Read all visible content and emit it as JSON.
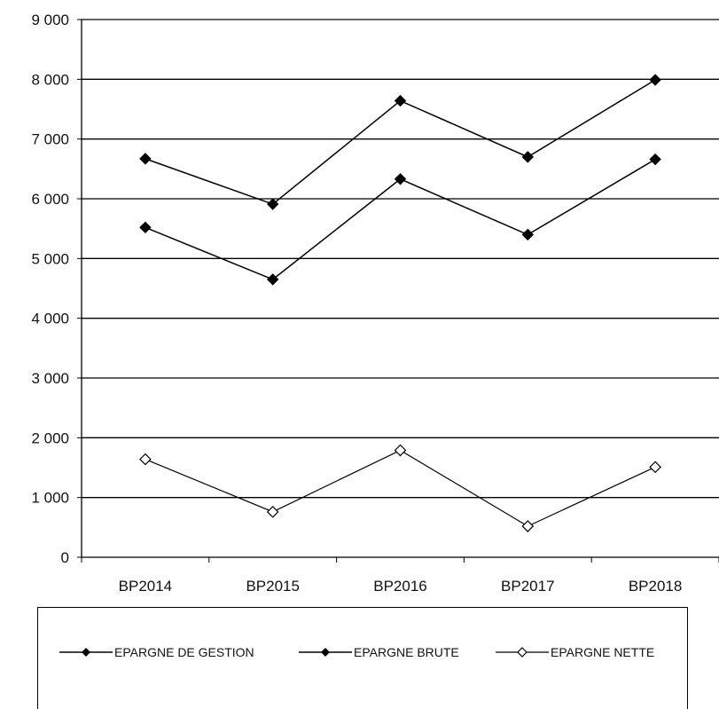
{
  "chart_data": {
    "type": "line",
    "title": "",
    "xlabel": "",
    "ylabel": "",
    "categories": [
      "BP2014",
      "BP2015",
      "BP2016",
      "BP2017",
      "BP2018"
    ],
    "ylim": [
      0,
      9000
    ],
    "yticks": [
      0,
      1000,
      2000,
      3000,
      4000,
      5000,
      6000,
      7000,
      8000,
      9000
    ],
    "ytick_labels": [
      "0",
      "1 000",
      "2 000",
      "3 000",
      "4 000",
      "5 000",
      "6 000",
      "7 000",
      "8 000",
      "9 000"
    ],
    "grid": true,
    "legend_position": "bottom",
    "series": [
      {
        "name": "EPARGNE DE GESTION",
        "values": [
          6670,
          5910,
          7640,
          6700,
          7990
        ],
        "marker": "filled-diamond",
        "color": "#000000"
      },
      {
        "name": "EPARGNE BRUTE",
        "values": [
          5520,
          4650,
          6330,
          5400,
          6660
        ],
        "marker": "filled-diamond",
        "color": "#000000"
      },
      {
        "name": "EPARGNE NETTE",
        "values": [
          1640,
          760,
          1790,
          520,
          1510
        ],
        "marker": "open-diamond",
        "color": "#000000"
      }
    ]
  }
}
